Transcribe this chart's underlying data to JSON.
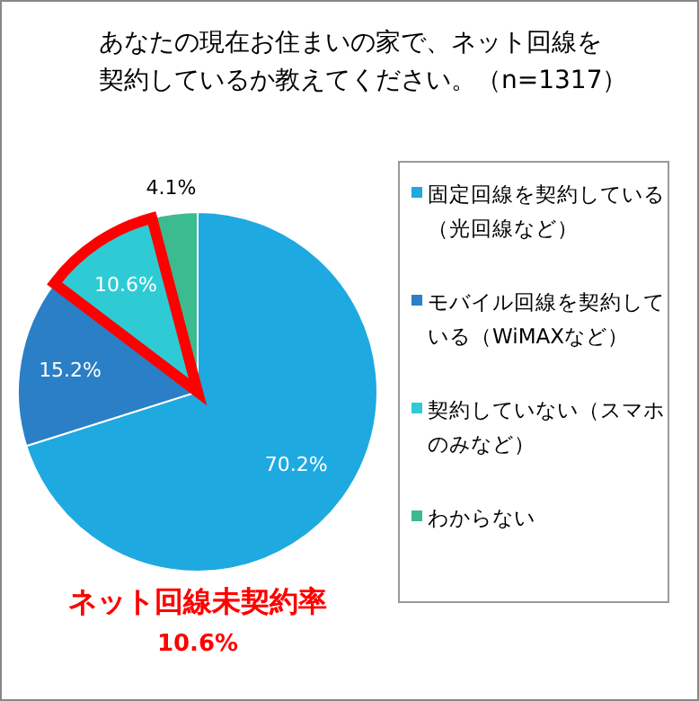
{
  "chart_data": {
    "type": "pie",
    "title": "あなたの現在お住まいの家で、ネット回線を契約しているか教えてください。（n=1317）",
    "categories": [
      "固定回線を契約している（光回線など）",
      "モバイル回線を契約している（WiMAXなど）",
      "契約していない（スマホのみなど）",
      "わからない"
    ],
    "values": [
      70.2,
      15.2,
      10.6,
      4.1
    ],
    "colors": [
      "#1ea9e1",
      "#2a7fc6",
      "#2ecbd5",
      "#3dbb90"
    ],
    "value_labels": [
      "70.2%",
      "15.2%",
      "10.6%",
      "4.1%"
    ],
    "legend": "right",
    "annotations": [
      "ネット回線未契約率",
      "10.6%"
    ]
  }
}
